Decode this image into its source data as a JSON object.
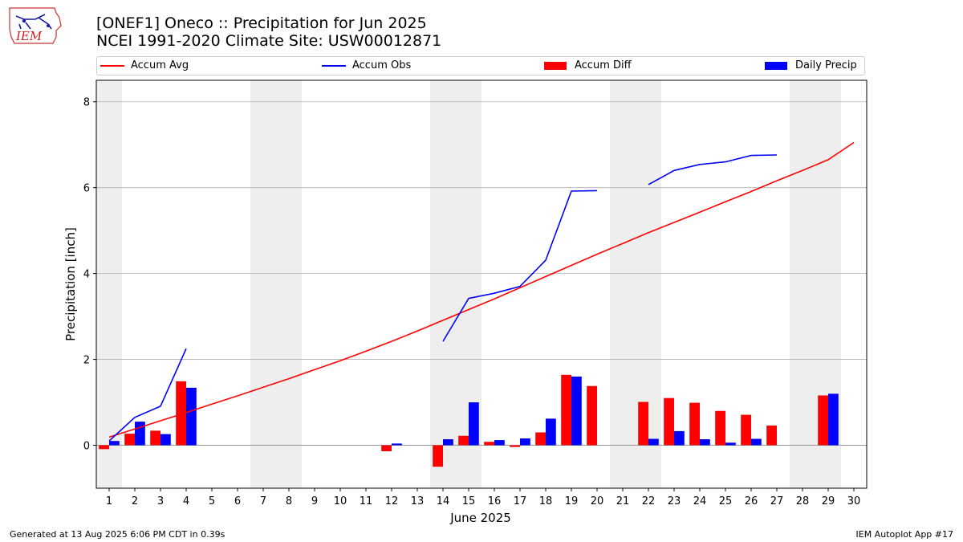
{
  "header": {
    "title_line1": "[ONEF1] Oneco :: Precipitation for Jun 2025",
    "title_line2": "NCEI 1991-2020 Climate Site: USW00012871"
  },
  "logo": {
    "text": "IEM",
    "icon": "iem-iowa-logo"
  },
  "legend": {
    "accum_avg": "Accum Avg",
    "accum_obs": "Accum Obs",
    "accum_diff": "Accum Diff",
    "daily_precip": "Daily Precip"
  },
  "colors": {
    "accum_avg": "#ff0000",
    "accum_obs": "#0000ff",
    "accum_diff": "#ff0000",
    "daily_precip": "#0000ff",
    "weekend_shade": "#eeeeee",
    "grid": "#b0b0b0"
  },
  "footer": {
    "left": "Generated at 13 Aug 2025 6:06 PM CDT in 0.39s",
    "right": "IEM Autoplot App #17"
  },
  "chart_data": {
    "type": "bar",
    "xlabel": "June 2025",
    "ylabel": "Precipitation [inch]",
    "xlim": [
      0.5,
      30.5
    ],
    "ylim": [
      -1.0,
      8.5
    ],
    "yticks": [
      0,
      2,
      4,
      6,
      8
    ],
    "categories": [
      "1",
      "2",
      "3",
      "4",
      "5",
      "6",
      "7",
      "8",
      "9",
      "10",
      "11",
      "12",
      "13",
      "14",
      "15",
      "16",
      "17",
      "18",
      "19",
      "20",
      "21",
      "22",
      "23",
      "24",
      "25",
      "26",
      "27",
      "28",
      "29",
      "30"
    ],
    "weekend_shaded_days": [
      1,
      7,
      8,
      14,
      15,
      21,
      22,
      28,
      29
    ],
    "grid": true,
    "legend_position": "top",
    "series": [
      {
        "name": "Accum Avg",
        "type": "line",
        "values": [
          0.19,
          0.38,
          0.57,
          0.76,
          0.96,
          1.15,
          1.35,
          1.55,
          1.76,
          1.97,
          2.19,
          2.42,
          2.66,
          2.91,
          3.16,
          3.41,
          3.67,
          3.93,
          4.19,
          4.45,
          4.7,
          4.95,
          5.19,
          5.43,
          5.67,
          5.91,
          6.16,
          6.4,
          6.65,
          7.05
        ]
      },
      {
        "name": "Accum Obs",
        "type": "line",
        "values": [
          0.1,
          0.65,
          0.91,
          2.25,
          null,
          null,
          null,
          null,
          null,
          null,
          null,
          null,
          null,
          2.42,
          3.42,
          3.54,
          3.7,
          4.31,
          5.92,
          5.93,
          null,
          6.07,
          6.4,
          6.54,
          6.6,
          6.75,
          6.76,
          null,
          null,
          null
        ]
      },
      {
        "name": "Accum Diff",
        "type": "bar",
        "values": [
          -0.09,
          0.27,
          0.34,
          1.49,
          null,
          null,
          null,
          null,
          null,
          null,
          null,
          -0.14,
          null,
          -0.5,
          0.22,
          0.08,
          -0.04,
          0.3,
          1.64,
          1.38,
          null,
          1.01,
          1.1,
          0.99,
          0.8,
          0.71,
          0.46,
          null,
          1.16,
          null
        ]
      },
      {
        "name": "Daily Precip",
        "type": "bar",
        "values": [
          0.1,
          0.55,
          0.26,
          1.34,
          null,
          null,
          null,
          null,
          null,
          null,
          null,
          0.04,
          null,
          0.14,
          1.0,
          0.12,
          0.16,
          0.62,
          1.6,
          null,
          null,
          0.15,
          0.33,
          0.14,
          0.06,
          0.15,
          null,
          null,
          1.2,
          null
        ]
      }
    ]
  }
}
